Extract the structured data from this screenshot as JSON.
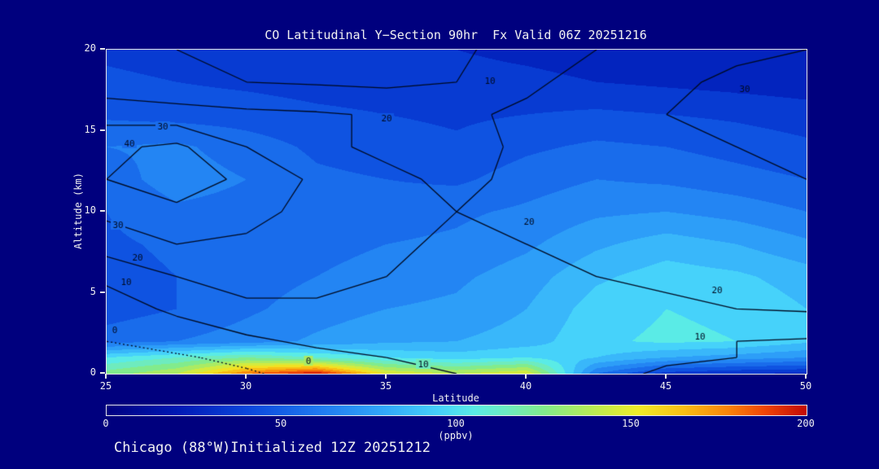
{
  "page": {
    "background": "#00007e",
    "text_color": "#f2f2f2",
    "footer": "Chicago (88°W)Initialized 12Z 20251212"
  },
  "chart_data": {
    "type": "heatmap",
    "subtype": "filled-contour-cross-section",
    "title": "CO Latitudinal Y−Section 90hr  Fx Valid 06Z 20251216",
    "xlabel": "Latitude",
    "ylabel": "Altitude (km)",
    "xlim": [
      25,
      50
    ],
    "ylim": [
      0,
      20
    ],
    "x_ticks": [
      25,
      30,
      35,
      40,
      45,
      50
    ],
    "y_ticks": [
      0,
      5,
      10,
      15,
      20
    ],
    "x": [
      25,
      27.5,
      30,
      32.5,
      35,
      37.5,
      40,
      42.5,
      45,
      47.5,
      50
    ],
    "y": [
      0,
      1,
      2,
      4,
      6,
      8,
      10,
      12,
      14,
      16,
      18,
      20
    ],
    "fill_values_ppbv": [
      [
        125,
        140,
        180,
        200,
        150,
        140,
        150,
        60,
        35,
        30,
        28
      ],
      [
        100,
        110,
        120,
        110,
        100,
        95,
        100,
        90,
        80,
        75,
        70
      ],
      [
        55,
        60,
        65,
        72,
        78,
        80,
        85,
        98,
        102,
        100,
        92
      ],
      [
        45,
        50,
        58,
        65,
        70,
        72,
        80,
        95,
        100,
        98,
        90
      ],
      [
        46,
        50,
        55,
        60,
        65,
        68,
        75,
        88,
        95,
        92,
        85
      ],
      [
        48,
        52,
        54,
        56,
        60,
        62,
        68,
        78,
        85,
        80,
        72
      ],
      [
        50,
        58,
        56,
        52,
        55,
        58,
        62,
        68,
        70,
        66,
        60
      ],
      [
        55,
        65,
        60,
        52,
        50,
        48,
        55,
        60,
        58,
        54,
        50
      ],
      [
        60,
        62,
        55,
        48,
        45,
        42,
        48,
        52,
        50,
        46,
        42
      ],
      [
        48,
        46,
        45,
        42,
        40,
        38,
        40,
        42,
        40,
        38,
        35
      ],
      [
        42,
        40,
        38,
        36,
        35,
        33,
        32,
        30,
        28,
        26,
        24
      ],
      [
        38,
        36,
        34,
        33,
        32,
        30,
        28,
        26,
        24,
        22,
        20
      ]
    ],
    "contour_levels": [
      0,
      10,
      20,
      30,
      40
    ],
    "contour_field": [
      [
        -6,
        -4,
        -1,
        3,
        8,
        10,
        14,
        12,
        9,
        8,
        7
      ],
      [
        -3,
        -1,
        2,
        7,
        10,
        11,
        13,
        13,
        11,
        10,
        9
      ],
      [
        0,
        3,
        8,
        12,
        13,
        12,
        13,
        14,
        11,
        10,
        9
      ],
      [
        5,
        12,
        18,
        19,
        18,
        16,
        17,
        18,
        19,
        20,
        21
      ],
      [
        12,
        20,
        24,
        22,
        20,
        18,
        19,
        20,
        21,
        22,
        23
      ],
      [
        25,
        30,
        28,
        24,
        21,
        19,
        20,
        22,
        23,
        24,
        25
      ],
      [
        32,
        38,
        34,
        26,
        22,
        20,
        21,
        24,
        25,
        26,
        28
      ],
      [
        40,
        45,
        38,
        28,
        22,
        18,
        22,
        25,
        26,
        28,
        30
      ],
      [
        38,
        42,
        30,
        22,
        18,
        16,
        22,
        26,
        28,
        30,
        32
      ],
      [
        26,
        24,
        22,
        21,
        19,
        18,
        22,
        27,
        30,
        33,
        35
      ],
      [
        14,
        12,
        10,
        9,
        8,
        10,
        18,
        24,
        28,
        32,
        33
      ],
      [
        12,
        10,
        8,
        8,
        6,
        8,
        15,
        20,
        25,
        28,
        30
      ]
    ],
    "contour_labels": [
      {
        "lat": 38.7,
        "alt": 18.1,
        "text": "10"
      },
      {
        "lat": 35.0,
        "alt": 15.8,
        "text": "20"
      },
      {
        "lat": 47.8,
        "alt": 17.6,
        "text": "30"
      },
      {
        "lat": 27.0,
        "alt": 15.3,
        "text": "30"
      },
      {
        "lat": 25.8,
        "alt": 14.2,
        "text": "40"
      },
      {
        "lat": 25.4,
        "alt": 9.2,
        "text": "30"
      },
      {
        "lat": 26.1,
        "alt": 7.2,
        "text": "20"
      },
      {
        "lat": 25.7,
        "alt": 5.7,
        "text": "10"
      },
      {
        "lat": 25.3,
        "alt": 2.7,
        "text": "0"
      },
      {
        "lat": 40.1,
        "alt": 9.4,
        "text": "20"
      },
      {
        "lat": 46.8,
        "alt": 5.2,
        "text": "20"
      },
      {
        "lat": 46.2,
        "alt": 2.3,
        "text": "10"
      },
      {
        "lat": 32.2,
        "alt": 0.8,
        "text": "0"
      },
      {
        "lat": 36.3,
        "alt": 0.6,
        "text": "10"
      }
    ],
    "colorbar": {
      "min": 0,
      "max": 200,
      "ticks": [
        0,
        50,
        100,
        150,
        200
      ],
      "unit": "(ppbv)",
      "stops": [
        [
          0,
          [
            0,
            0,
            130
          ]
        ],
        [
          20,
          [
            0,
            25,
            180
          ]
        ],
        [
          40,
          [
            10,
            70,
            220
          ]
        ],
        [
          60,
          [
            30,
            120,
            240
          ]
        ],
        [
          80,
          [
            50,
            170,
            250
          ]
        ],
        [
          95,
          [
            70,
            210,
            250
          ]
        ],
        [
          105,
          [
            90,
            235,
            230
          ]
        ],
        [
          115,
          [
            110,
            235,
            190
          ]
        ],
        [
          125,
          [
            130,
            235,
            140
          ]
        ],
        [
          140,
          [
            190,
            235,
            80
          ]
        ],
        [
          152,
          [
            240,
            235,
            40
          ]
        ],
        [
          165,
          [
            250,
            190,
            20
          ]
        ],
        [
          178,
          [
            250,
            130,
            10
          ]
        ],
        [
          188,
          [
            240,
            70,
            5
          ]
        ],
        [
          200,
          [
            195,
            10,
            5
          ]
        ]
      ]
    },
    "colors": {
      "contour_line": "#000a20",
      "frame": "#e8e8e8"
    }
  }
}
